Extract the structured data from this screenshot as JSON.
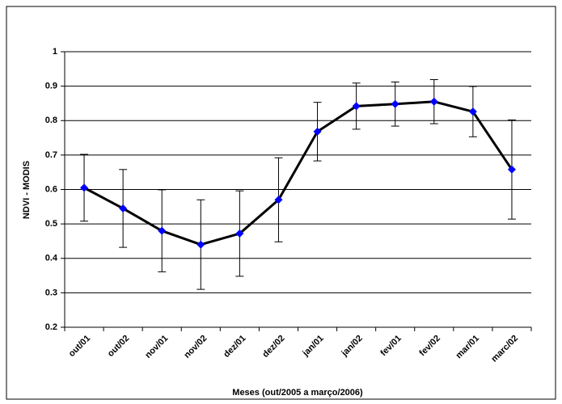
{
  "chart_data": {
    "type": "line",
    "x_label": "Meses (out/2005 a março/2006)",
    "y_label": "NDVI - MODIS",
    "categories": [
      "out/01",
      "out/02",
      "nov/01",
      "nov/02",
      "dez/01",
      "dez/02",
      "jan/01",
      "jan/02",
      "fev/01",
      "fev/02",
      "mar/01",
      "marc/02"
    ],
    "values": [
      0.605,
      0.545,
      0.48,
      0.44,
      0.472,
      0.57,
      0.768,
      0.842,
      0.848,
      0.855,
      0.826,
      0.658
    ],
    "errors": [
      0.097,
      0.113,
      0.119,
      0.13,
      0.124,
      0.122,
      0.085,
      0.067,
      0.064,
      0.064,
      0.073,
      0.144
    ],
    "color": "#0000ff",
    "line_color": "#000000",
    "ylim": [
      0.2,
      1
    ],
    "yticks": [
      0.2,
      0.3,
      0.4,
      0.5,
      0.6,
      0.7,
      0.8,
      0.9,
      1
    ],
    "grid": true
  }
}
